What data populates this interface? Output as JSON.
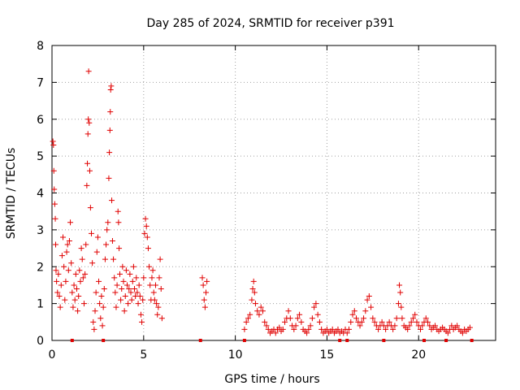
{
  "chart_data": {
    "type": "scatter",
    "title": "Day 285 of 2024, SRMTID for receiver p391",
    "xlabel": "GPS time / hours",
    "ylabel": "SRMTID / TECUs",
    "xlim": [
      0,
      24.2
    ],
    "ylim": [
      0,
      8
    ],
    "xticks": [
      0,
      5,
      10,
      15,
      20
    ],
    "yticks": [
      0,
      1,
      2,
      3,
      4,
      5,
      6,
      7,
      8
    ],
    "grid": true,
    "marker": "+",
    "color": "#e00000",
    "series": [
      {
        "name": "SRMTID",
        "points": [
          [
            0.05,
            5.4
          ],
          [
            0.08,
            5.3
          ],
          [
            0.1,
            4.6
          ],
          [
            0.12,
            4.1
          ],
          [
            0.15,
            3.7
          ],
          [
            0.18,
            3.3
          ],
          [
            0.2,
            2.6
          ],
          [
            0.22,
            1.9
          ],
          [
            0.25,
            1.6
          ],
          [
            0.3,
            1.3
          ],
          [
            0.35,
            1.8
          ],
          [
            0.4,
            1.2
          ],
          [
            0.45,
            0.9
          ],
          [
            0.5,
            1.5
          ],
          [
            0.55,
            2.3
          ],
          [
            0.6,
            2.8
          ],
          [
            0.65,
            2.0
          ],
          [
            0.7,
            1.1
          ],
          [
            0.75,
            1.6
          ],
          [
            0.8,
            2.4
          ],
          [
            0.85,
            2.6
          ],
          [
            0.9,
            1.9
          ],
          [
            0.95,
            2.7
          ],
          [
            1.0,
            3.2
          ],
          [
            1.05,
            2.1
          ],
          [
            1.1,
            1.3
          ],
          [
            1.15,
            0.9
          ],
          [
            1.2,
            1.5
          ],
          [
            1.25,
            1.1
          ],
          [
            1.3,
            1.8
          ],
          [
            1.35,
            1.4
          ],
          [
            1.4,
            0.8
          ],
          [
            1.45,
            1.2
          ],
          [
            1.5,
            1.9
          ],
          [
            1.55,
            1.6
          ],
          [
            1.6,
            2.5
          ],
          [
            1.65,
            2.2
          ],
          [
            1.7,
            1.7
          ],
          [
            1.75,
            1.0
          ],
          [
            1.8,
            1.8
          ],
          [
            1.85,
            2.6
          ],
          [
            1.9,
            4.2
          ],
          [
            1.93,
            4.8
          ],
          [
            1.96,
            5.6
          ],
          [
            1.98,
            6.0
          ],
          [
            2.0,
            7.3
          ],
          [
            2.03,
            5.9
          ],
          [
            2.06,
            4.6
          ],
          [
            2.1,
            3.6
          ],
          [
            2.15,
            2.9
          ],
          [
            2.2,
            2.1
          ],
          [
            2.25,
            0.5
          ],
          [
            2.3,
            0.3
          ],
          [
            2.35,
            0.8
          ],
          [
            2.4,
            1.3
          ],
          [
            2.45,
            2.4
          ],
          [
            2.5,
            2.8
          ],
          [
            2.55,
            1.6
          ],
          [
            2.6,
            1.0
          ],
          [
            2.65,
            0.6
          ],
          [
            2.7,
            1.2
          ],
          [
            2.75,
            0.4
          ],
          [
            2.8,
            0.9
          ],
          [
            2.85,
            1.4
          ],
          [
            2.9,
            2.2
          ],
          [
            2.95,
            2.6
          ],
          [
            3.0,
            3.0
          ],
          [
            3.05,
            3.2
          ],
          [
            3.1,
            4.4
          ],
          [
            3.13,
            5.1
          ],
          [
            3.16,
            5.7
          ],
          [
            3.18,
            6.2
          ],
          [
            3.2,
            6.8
          ],
          [
            3.23,
            6.9
          ],
          [
            3.26,
            3.8
          ],
          [
            3.3,
            2.7
          ],
          [
            3.35,
            2.2
          ],
          [
            3.4,
            1.7
          ],
          [
            3.45,
            1.3
          ],
          [
            3.5,
            0.9
          ],
          [
            3.55,
            1.5
          ],
          [
            3.6,
            3.5
          ],
          [
            3.63,
            3.2
          ],
          [
            3.66,
            2.5
          ],
          [
            3.7,
            1.8
          ],
          [
            3.75,
            1.1
          ],
          [
            3.8,
            1.4
          ],
          [
            3.85,
            2.0
          ],
          [
            3.9,
            1.6
          ],
          [
            3.95,
            0.8
          ],
          [
            4.0,
            1.2
          ],
          [
            4.05,
            1.9
          ],
          [
            4.1,
            1.5
          ],
          [
            4.15,
            1.0
          ],
          [
            4.2,
            1.4
          ],
          [
            4.25,
            1.8
          ],
          [
            4.3,
            1.3
          ],
          [
            4.35,
            1.1
          ],
          [
            4.4,
            1.6
          ],
          [
            4.45,
            2.0
          ],
          [
            4.5,
            1.4
          ],
          [
            4.55,
            1.2
          ],
          [
            4.6,
            1.7
          ],
          [
            4.65,
            1.3
          ],
          [
            4.7,
            1.0
          ],
          [
            4.75,
            1.5
          ],
          [
            4.8,
            1.2
          ],
          [
            4.85,
            0.7
          ],
          [
            4.9,
            0.5
          ],
          [
            4.95,
            1.1
          ],
          [
            5.0,
            1.7
          ],
          [
            5.05,
            2.9
          ],
          [
            5.1,
            3.3
          ],
          [
            5.15,
            3.1
          ],
          [
            5.2,
            2.8
          ],
          [
            5.25,
            2.5
          ],
          [
            5.3,
            2.0
          ],
          [
            5.35,
            1.5
          ],
          [
            5.4,
            1.1
          ],
          [
            5.45,
            1.7
          ],
          [
            5.5,
            1.9
          ],
          [
            5.55,
            1.3
          ],
          [
            5.6,
            1.1
          ],
          [
            5.65,
            1.5
          ],
          [
            5.7,
            1.0
          ],
          [
            5.75,
            0.7
          ],
          [
            5.8,
            0.9
          ],
          [
            5.85,
            1.7
          ],
          [
            5.9,
            2.2
          ],
          [
            5.95,
            1.4
          ],
          [
            6.0,
            0.6
          ],
          [
            8.2,
            1.7
          ],
          [
            8.25,
            1.5
          ],
          [
            8.3,
            1.1
          ],
          [
            8.35,
            0.9
          ],
          [
            8.4,
            1.3
          ],
          [
            8.45,
            1.6
          ],
          [
            10.5,
            0.3
          ],
          [
            10.6,
            0.5
          ],
          [
            10.7,
            0.6
          ],
          [
            10.8,
            0.7
          ],
          [
            10.9,
            1.1
          ],
          [
            10.95,
            1.4
          ],
          [
            11.0,
            1.6
          ],
          [
            11.05,
            1.3
          ],
          [
            11.1,
            1.0
          ],
          [
            11.2,
            0.8
          ],
          [
            11.3,
            0.7
          ],
          [
            11.4,
            0.9
          ],
          [
            11.5,
            0.8
          ],
          [
            11.6,
            0.5
          ],
          [
            11.7,
            0.4
          ],
          [
            11.8,
            0.3
          ],
          [
            11.9,
            0.2
          ],
          [
            12.0,
            0.25
          ],
          [
            12.1,
            0.3
          ],
          [
            12.2,
            0.2
          ],
          [
            12.3,
            0.3
          ],
          [
            12.4,
            0.35
          ],
          [
            12.5,
            0.25
          ],
          [
            12.6,
            0.3
          ],
          [
            12.7,
            0.5
          ],
          [
            12.8,
            0.6
          ],
          [
            12.9,
            0.8
          ],
          [
            13.0,
            0.6
          ],
          [
            13.1,
            0.4
          ],
          [
            13.2,
            0.3
          ],
          [
            13.3,
            0.4
          ],
          [
            13.4,
            0.6
          ],
          [
            13.5,
            0.7
          ],
          [
            13.6,
            0.5
          ],
          [
            13.7,
            0.3
          ],
          [
            13.8,
            0.25
          ],
          [
            13.9,
            0.2
          ],
          [
            14.0,
            0.3
          ],
          [
            14.1,
            0.4
          ],
          [
            14.2,
            0.6
          ],
          [
            14.3,
            0.9
          ],
          [
            14.4,
            1.0
          ],
          [
            14.5,
            0.7
          ],
          [
            14.6,
            0.5
          ],
          [
            14.7,
            0.3
          ],
          [
            14.8,
            0.2
          ],
          [
            14.9,
            0.25
          ],
          [
            15.0,
            0.3
          ],
          [
            15.1,
            0.2
          ],
          [
            15.2,
            0.25
          ],
          [
            15.3,
            0.3
          ],
          [
            15.4,
            0.2
          ],
          [
            15.5,
            0.25
          ],
          [
            15.6,
            0.3
          ],
          [
            15.7,
            0.2
          ],
          [
            15.8,
            0.25
          ],
          [
            15.9,
            0.2
          ],
          [
            16.0,
            0.3
          ],
          [
            16.1,
            0.2
          ],
          [
            16.2,
            0.3
          ],
          [
            16.3,
            0.5
          ],
          [
            16.4,
            0.7
          ],
          [
            16.5,
            0.8
          ],
          [
            16.6,
            0.6
          ],
          [
            16.7,
            0.5
          ],
          [
            16.8,
            0.4
          ],
          [
            16.9,
            0.5
          ],
          [
            17.0,
            0.6
          ],
          [
            17.1,
            0.8
          ],
          [
            17.2,
            1.1
          ],
          [
            17.3,
            1.2
          ],
          [
            17.4,
            0.9
          ],
          [
            17.5,
            0.6
          ],
          [
            17.6,
            0.5
          ],
          [
            17.7,
            0.4
          ],
          [
            17.8,
            0.3
          ],
          [
            17.9,
            0.4
          ],
          [
            18.0,
            0.5
          ],
          [
            18.1,
            0.4
          ],
          [
            18.2,
            0.3
          ],
          [
            18.3,
            0.4
          ],
          [
            18.4,
            0.5
          ],
          [
            18.5,
            0.4
          ],
          [
            18.6,
            0.3
          ],
          [
            18.7,
            0.4
          ],
          [
            18.8,
            0.6
          ],
          [
            18.9,
            1.0
          ],
          [
            18.95,
            1.5
          ],
          [
            19.0,
            1.3
          ],
          [
            19.05,
            0.9
          ],
          [
            19.1,
            0.6
          ],
          [
            19.2,
            0.4
          ],
          [
            19.3,
            0.35
          ],
          [
            19.4,
            0.3
          ],
          [
            19.5,
            0.4
          ],
          [
            19.6,
            0.5
          ],
          [
            19.7,
            0.6
          ],
          [
            19.8,
            0.7
          ],
          [
            19.9,
            0.5
          ],
          [
            20.0,
            0.4
          ],
          [
            20.1,
            0.3
          ],
          [
            20.2,
            0.4
          ],
          [
            20.3,
            0.5
          ],
          [
            20.4,
            0.6
          ],
          [
            20.5,
            0.5
          ],
          [
            20.6,
            0.4
          ],
          [
            20.7,
            0.3
          ],
          [
            20.8,
            0.35
          ],
          [
            20.9,
            0.4
          ],
          [
            21.0,
            0.3
          ],
          [
            21.1,
            0.25
          ],
          [
            21.2,
            0.3
          ],
          [
            21.3,
            0.35
          ],
          [
            21.4,
            0.3
          ],
          [
            21.5,
            0.25
          ],
          [
            21.6,
            0.2
          ],
          [
            21.7,
            0.3
          ],
          [
            21.8,
            0.4
          ],
          [
            21.9,
            0.3
          ],
          [
            22.0,
            0.35
          ],
          [
            22.1,
            0.4
          ],
          [
            22.2,
            0.3
          ],
          [
            22.3,
            0.25
          ],
          [
            22.4,
            0.2
          ],
          [
            22.5,
            0.3
          ],
          [
            22.6,
            0.25
          ],
          [
            22.7,
            0.3
          ],
          [
            22.8,
            0.35
          ]
        ],
        "zero_points": [
          1.1,
          2.8,
          8.1,
          10.5,
          15.7,
          16.1,
          18.1,
          20.3,
          21.5,
          22.9
        ]
      }
    ]
  }
}
